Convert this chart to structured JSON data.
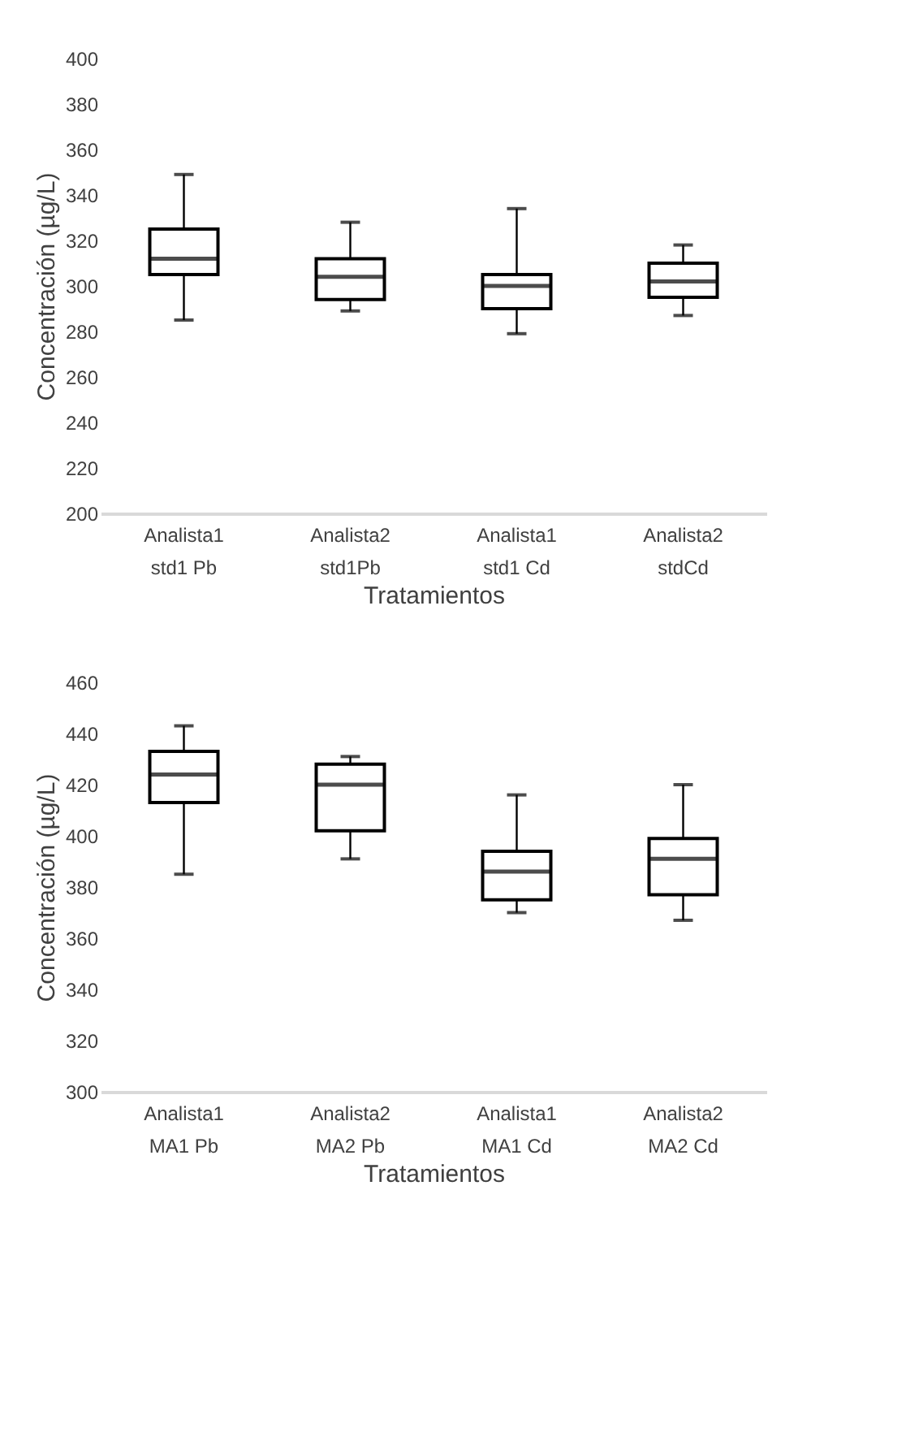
{
  "chart_data": [
    {
      "type": "box",
      "xlabel": "Tratamientos",
      "ylabel": "Concentración (µg/L)",
      "categories": [
        "Analista1\nstd1 Pb",
        "Analista2\nstd1Pb",
        "Analista1\nstd1 Cd",
        "Analista2\nstdCd"
      ],
      "boxes": [
        {
          "low": 285,
          "q1": 305,
          "median": 312,
          "q3": 325,
          "high": 349
        },
        {
          "low": 289,
          "q1": 294,
          "median": 304,
          "q3": 312,
          "high": 328
        },
        {
          "low": 279,
          "q1": 290,
          "median": 300,
          "q3": 305,
          "high": 334
        },
        {
          "low": 287,
          "q1": 295,
          "median": 302,
          "q3": 310,
          "high": 318
        }
      ],
      "ylim": [
        200,
        400
      ],
      "yticks": [
        200,
        220,
        240,
        260,
        280,
        300,
        320,
        340,
        360,
        380,
        400
      ]
    },
    {
      "type": "box",
      "xlabel": "Tratamientos",
      "ylabel": "Concentración (µg/L)",
      "categories": [
        "Analista1\nMA1 Pb",
        "Analista2\nMA2 Pb",
        "Analista1\nMA1 Cd",
        "Analista2\nMA2 Cd"
      ],
      "boxes": [
        {
          "low": 385,
          "q1": 413,
          "median": 424,
          "q3": 433,
          "high": 443
        },
        {
          "low": 391,
          "q1": 402,
          "median": 420,
          "q3": 428,
          "high": 431
        },
        {
          "low": 370,
          "q1": 375,
          "median": 386,
          "q3": 394,
          "high": 416
        },
        {
          "low": 367,
          "q1": 377,
          "median": 391,
          "q3": 399,
          "high": 420
        }
      ],
      "ylim": [
        300,
        460
      ],
      "yticks": [
        300,
        320,
        340,
        360,
        380,
        400,
        420,
        440,
        460
      ]
    }
  ]
}
